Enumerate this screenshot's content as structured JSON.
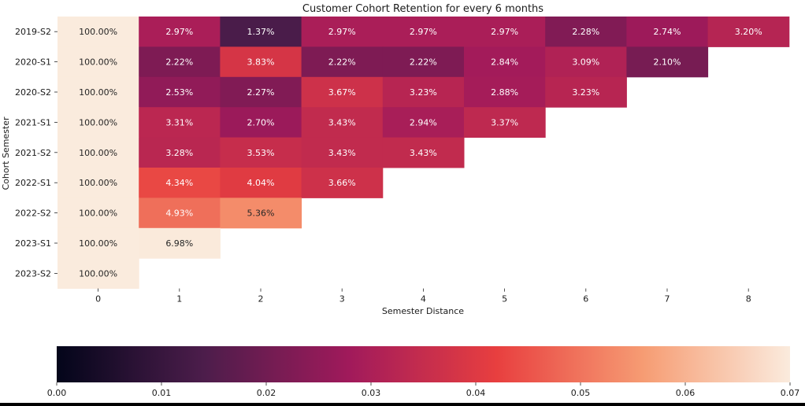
{
  "chart_data": {
    "type": "heatmap",
    "title": "Customer Cohort Retention for every 6 months",
    "xlabel": "Semester Distance",
    "ylabel": "Cohort Semester",
    "x_categories": [
      "0",
      "1",
      "2",
      "3",
      "4",
      "5",
      "6",
      "7",
      "8"
    ],
    "y_categories": [
      "2019-S2",
      "2020-S1",
      "2020-S2",
      "2021-S1",
      "2021-S2",
      "2022-S1",
      "2022-S2",
      "2023-S1",
      "2023-S2"
    ],
    "values": [
      [
        1.0,
        0.0297,
        0.0137,
        0.0297,
        0.0297,
        0.0297,
        0.0228,
        0.0274,
        0.032
      ],
      [
        1.0,
        0.0222,
        0.0383,
        0.0222,
        0.0222,
        0.0284,
        0.0309,
        0.021,
        null
      ],
      [
        1.0,
        0.0253,
        0.0227,
        0.0367,
        0.0323,
        0.0288,
        0.0323,
        null,
        null
      ],
      [
        1.0,
        0.0331,
        0.027,
        0.0343,
        0.0294,
        0.0337,
        null,
        null,
        null
      ],
      [
        1.0,
        0.0328,
        0.0353,
        0.0343,
        0.0343,
        null,
        null,
        null,
        null
      ],
      [
        1.0,
        0.0434,
        0.0404,
        0.0366,
        null,
        null,
        null,
        null,
        null
      ],
      [
        1.0,
        0.0493,
        0.0536,
        null,
        null,
        null,
        null,
        null,
        null
      ],
      [
        1.0,
        0.0698,
        null,
        null,
        null,
        null,
        null,
        null,
        null
      ],
      [
        1.0,
        null,
        null,
        null,
        null,
        null,
        null,
        null,
        null
      ]
    ],
    "cell_labels": [
      [
        "100.00%",
        "2.97%",
        "1.37%",
        "2.97%",
        "2.97%",
        "2.97%",
        "2.28%",
        "2.74%",
        "3.20%"
      ],
      [
        "100.00%",
        "2.22%",
        "3.83%",
        "2.22%",
        "2.22%",
        "2.84%",
        "3.09%",
        "2.10%"
      ],
      [
        "100.00%",
        "2.53%",
        "2.27%",
        "3.67%",
        "3.23%",
        "2.88%",
        "3.23%"
      ],
      [
        "100.00%",
        "3.31%",
        "2.70%",
        "3.43%",
        "2.94%",
        "3.37%"
      ],
      [
        "100.00%",
        "3.28%",
        "3.53%",
        "3.43%",
        "3.43%"
      ],
      [
        "100.00%",
        "4.34%",
        "4.04%",
        "3.66%"
      ],
      [
        "100.00%",
        "4.93%",
        "5.36%"
      ],
      [
        "100.00%",
        "6.98%"
      ],
      [
        "100.00%"
      ]
    ],
    "colorbar": {
      "orientation": "horizontal",
      "range": [
        0.0,
        0.07
      ],
      "ticks": [
        "0.00",
        "0.01",
        "0.02",
        "0.03",
        "0.04",
        "0.05",
        "0.06",
        "0.07"
      ],
      "colormap": "rocket",
      "colormap_stops": [
        "#03051a",
        "#4c1d4b",
        "#a11a5b",
        "#e83f3f",
        "#f69c73",
        "#faebdd"
      ]
    }
  }
}
